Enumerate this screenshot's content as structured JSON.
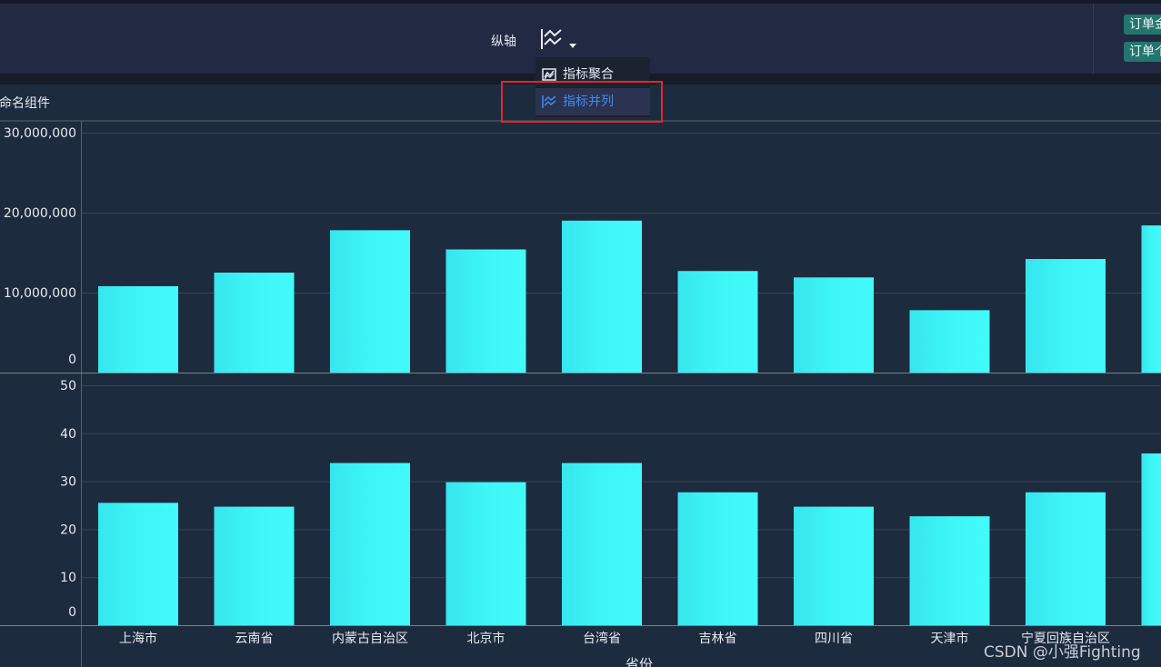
{
  "toolbar": {
    "axis_label": "纵轴",
    "axis_icon": "parallel-series-icon",
    "tags": [
      "订单金额",
      "订单个数"
    ]
  },
  "menu": {
    "items": [
      {
        "label": "指标聚合",
        "icon": "aggregate-icon",
        "active": false
      },
      {
        "label": "指标并列",
        "icon": "parallel-icon",
        "active": true
      }
    ]
  },
  "component_title": "命名组件",
  "watermark": "CSDN @小强Fighting",
  "colors": {
    "bar": "#3ef6f6",
    "background": "#1d2b3e",
    "highlight": "#e3262b",
    "active": "#3b8cf6"
  },
  "chart_data": [
    {
      "type": "bar",
      "categories": [
        "上海市",
        "云南省",
        "内蒙古自治区",
        "北京市",
        "台湾省",
        "吉林省",
        "四川省",
        "天津市",
        "宁夏回族自治区",
        ""
      ],
      "values": [
        10800000,
        12500000,
        17800000,
        15400000,
        19000000,
        12700000,
        11900000,
        7800000,
        14200000,
        18400000
      ],
      "ylim": [
        0,
        30000000
      ],
      "yticks": [
        0,
        10000000,
        20000000,
        30000000
      ],
      "ytick_labels": [
        "0",
        "10,000,000",
        "20,000,000",
        "30,000,000"
      ],
      "grid": true
    },
    {
      "type": "bar",
      "categories": [
        "上海市",
        "云南省",
        "内蒙古自治区",
        "北京市",
        "台湾省",
        "吉林省",
        "四川省",
        "天津市",
        "宁夏回族自治区",
        ""
      ],
      "values": [
        25.5,
        24.7,
        33.8,
        29.8,
        33.8,
        27.7,
        24.7,
        22.7,
        27.7,
        35.8
      ],
      "ylim": [
        0,
        50
      ],
      "yticks": [
        0,
        10,
        20,
        30,
        40,
        50
      ],
      "ytick_labels": [
        "0",
        "10",
        "20",
        "30",
        "40",
        "50"
      ],
      "grid": true
    }
  ],
  "xaxis_label": "省份"
}
